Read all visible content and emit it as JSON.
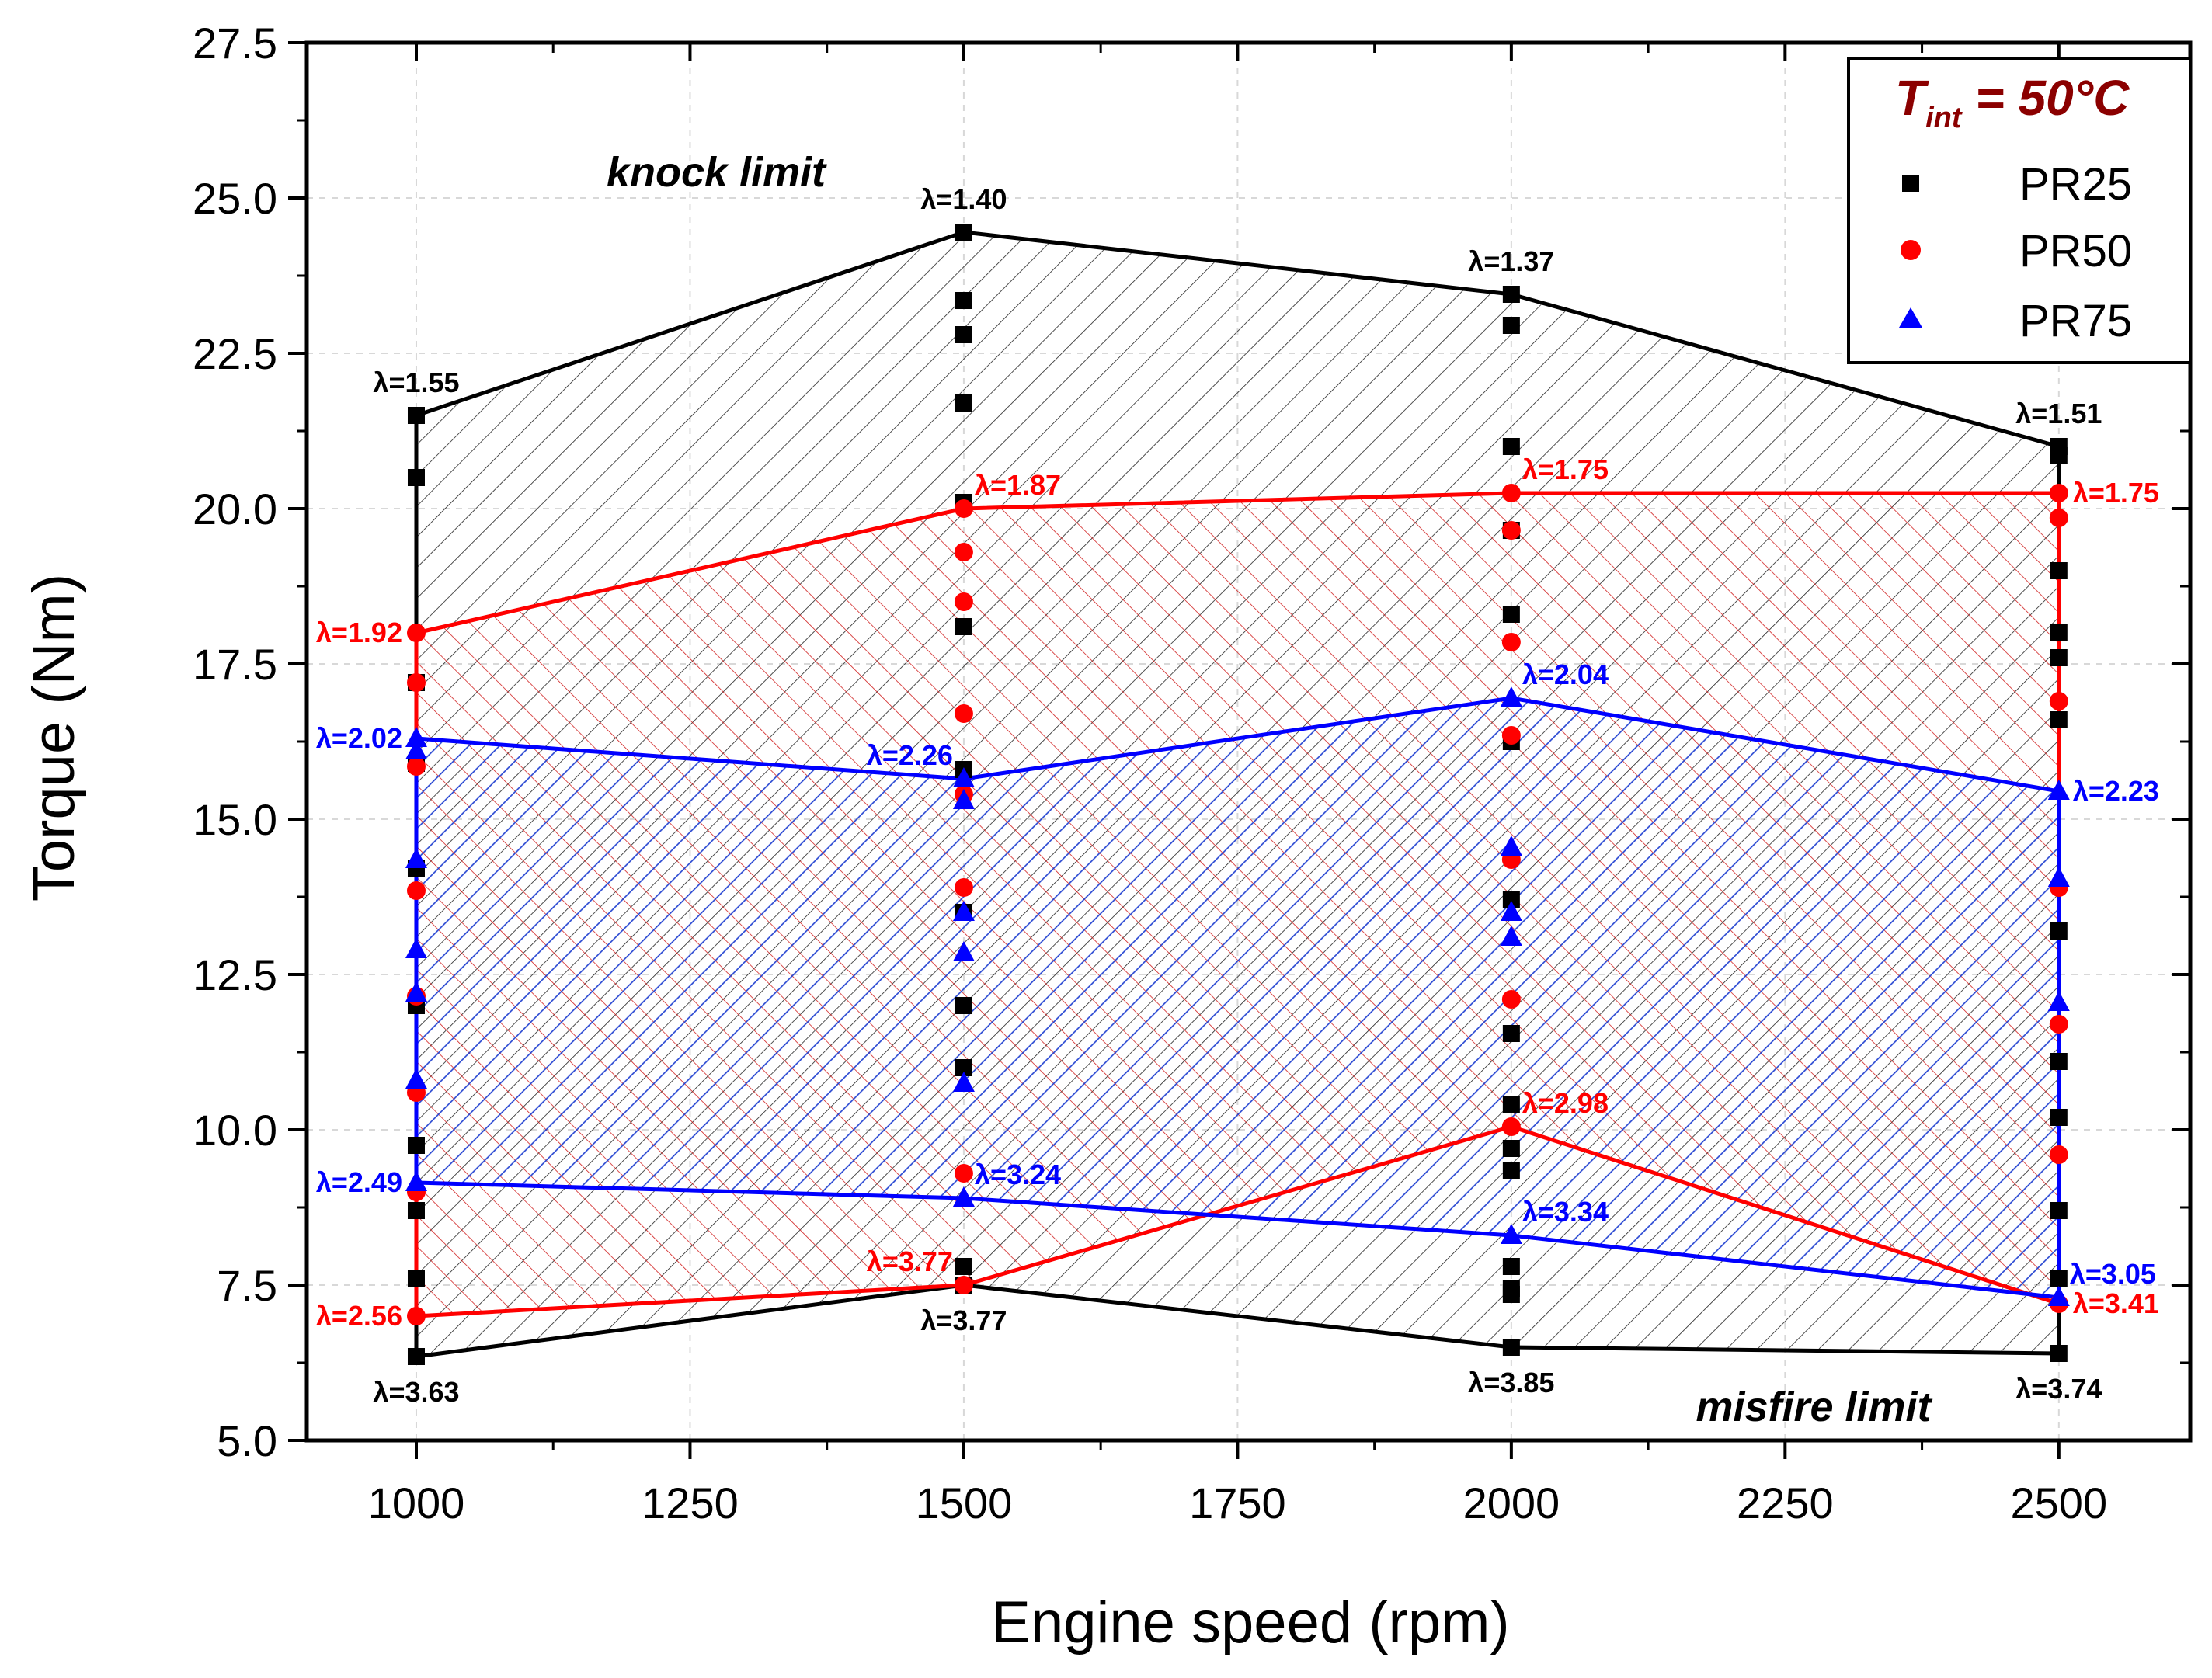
{
  "chart_data": {
    "type": "scatter",
    "xlabel": "Engine speed (rpm)",
    "ylabel": "Torque (Nm)",
    "xlim": [
      900,
      2620
    ],
    "ylim": [
      5.0,
      27.5
    ],
    "xticks": [
      1000,
      1250,
      1500,
      1750,
      2000,
      2250,
      2500
    ],
    "yticks": [
      5.0,
      7.5,
      10.0,
      12.5,
      15.0,
      17.5,
      20.0,
      22.5,
      25.0,
      27.5
    ],
    "xtick_labels": [
      "1000",
      "1250",
      "1500",
      "1750",
      "2000",
      "2250",
      "2500"
    ],
    "ytick_labels": [
      "5.0",
      "7.5",
      "10.0",
      "12.5",
      "15.0",
      "17.5",
      "20.0",
      "22.5",
      "25.0",
      "27.5"
    ],
    "legend": {
      "title_main": "T",
      "title_sub": "int",
      "title_rest": " = 50°C",
      "position": "top-right",
      "entries": [
        "PR25",
        "PR50",
        "PR75"
      ]
    },
    "colors": {
      "PR25": "#000000",
      "PR50": "#ff0000",
      "PR75": "#0000ff",
      "title": "#8b0000"
    },
    "annotations": {
      "knock": "knock limit",
      "misfire": "misfire limit"
    },
    "series": [
      {
        "name": "PR25",
        "marker": "square",
        "upper": [
          [
            1000,
            21.5
          ],
          [
            1500,
            24.45
          ],
          [
            2000,
            23.45
          ],
          [
            2500,
            21.0
          ]
        ],
        "lower": [
          [
            1000,
            6.35
          ],
          [
            1500,
            7.5
          ],
          [
            2000,
            6.5
          ],
          [
            2500,
            6.4
          ]
        ],
        "points": [
          [
            1000,
            21.5
          ],
          [
            1000,
            20.5
          ],
          [
            1000,
            17.2
          ],
          [
            1000,
            15.9
          ],
          [
            1000,
            14.2
          ],
          [
            1000,
            12.0
          ],
          [
            1000,
            9.75
          ],
          [
            1000,
            8.7
          ],
          [
            1000,
            7.6
          ],
          [
            1000,
            6.35
          ],
          [
            1500,
            24.45
          ],
          [
            1500,
            23.35
          ],
          [
            1500,
            22.8
          ],
          [
            1500,
            21.7
          ],
          [
            1500,
            20.1
          ],
          [
            1500,
            18.1
          ],
          [
            1500,
            15.8
          ],
          [
            1500,
            13.5
          ],
          [
            1500,
            12.0
          ],
          [
            1500,
            11.0
          ],
          [
            1500,
            7.8
          ],
          [
            1500,
            7.5
          ],
          [
            2000,
            23.45
          ],
          [
            2000,
            22.95
          ],
          [
            2000,
            21.0
          ],
          [
            2000,
            19.65
          ],
          [
            2000,
            18.3
          ],
          [
            2000,
            16.25
          ],
          [
            2000,
            13.7
          ],
          [
            2000,
            11.55
          ],
          [
            2000,
            10.4
          ],
          [
            2000,
            9.7
          ],
          [
            2000,
            9.35
          ],
          [
            2000,
            7.8
          ],
          [
            2000,
            7.45
          ],
          [
            2000,
            7.35
          ],
          [
            2000,
            6.5
          ],
          [
            2500,
            21.0
          ],
          [
            2500,
            20.85
          ],
          [
            2500,
            19.0
          ],
          [
            2500,
            18.0
          ],
          [
            2500,
            17.6
          ],
          [
            2500,
            16.6
          ],
          [
            2500,
            13.2
          ],
          [
            2500,
            11.1
          ],
          [
            2500,
            10.2
          ],
          [
            2500,
            8.7
          ],
          [
            2500,
            7.6
          ],
          [
            2500,
            6.4
          ]
        ],
        "labels": [
          {
            "x": 1000,
            "y": 21.5,
            "text": "λ=1.55",
            "pos": "above"
          },
          {
            "x": 1500,
            "y": 24.45,
            "text": "λ=1.40",
            "pos": "above"
          },
          {
            "x": 2000,
            "y": 23.45,
            "text": "λ=1.37",
            "pos": "above"
          },
          {
            "x": 2500,
            "y": 21.0,
            "text": "λ=1.51",
            "pos": "above"
          },
          {
            "x": 1000,
            "y": 6.35,
            "text": "λ=3.63",
            "pos": "below"
          },
          {
            "x": 1500,
            "y": 7.5,
            "text": "λ=3.77",
            "pos": "below"
          },
          {
            "x": 2000,
            "y": 6.5,
            "text": "λ=3.85",
            "pos": "below"
          },
          {
            "x": 2500,
            "y": 6.4,
            "text": "λ=3.74",
            "pos": "below"
          }
        ]
      },
      {
        "name": "PR50",
        "marker": "circle",
        "upper": [
          [
            1000,
            18.0
          ],
          [
            1500,
            20.0
          ],
          [
            2000,
            20.25
          ],
          [
            2500,
            20.25
          ]
        ],
        "lower": [
          [
            1000,
            7.0
          ],
          [
            1500,
            7.5
          ],
          [
            2000,
            10.05
          ],
          [
            2500,
            7.2
          ]
        ],
        "points": [
          [
            1000,
            18.0
          ],
          [
            1000,
            17.2
          ],
          [
            1000,
            15.85
          ],
          [
            1000,
            13.85
          ],
          [
            1000,
            12.15
          ],
          [
            1000,
            10.6
          ],
          [
            1000,
            9.0
          ],
          [
            1000,
            7.0
          ],
          [
            1500,
            20.0
          ],
          [
            1500,
            19.3
          ],
          [
            1500,
            18.5
          ],
          [
            1500,
            16.7
          ],
          [
            1500,
            15.4
          ],
          [
            1500,
            13.9
          ],
          [
            1500,
            9.3
          ],
          [
            1500,
            7.5
          ],
          [
            2000,
            20.25
          ],
          [
            2000,
            19.65
          ],
          [
            2000,
            17.85
          ],
          [
            2000,
            16.35
          ],
          [
            2000,
            14.35
          ],
          [
            2000,
            12.1
          ],
          [
            2000,
            10.05
          ],
          [
            2500,
            20.25
          ],
          [
            2500,
            19.85
          ],
          [
            2500,
            16.9
          ],
          [
            2500,
            13.9
          ],
          [
            2500,
            11.7
          ],
          [
            2500,
            9.6
          ],
          [
            2500,
            7.2
          ]
        ],
        "labels": [
          {
            "x": 1000,
            "y": 18.0,
            "text": "λ=1.92",
            "pos": "left"
          },
          {
            "x": 1500,
            "y": 20.0,
            "text": "λ=1.87",
            "pos": "upright"
          },
          {
            "x": 2000,
            "y": 20.25,
            "text": "λ=1.75",
            "pos": "upright"
          },
          {
            "x": 2500,
            "y": 20.25,
            "text": "λ=1.75",
            "pos": "right"
          },
          {
            "x": 1000,
            "y": 7.0,
            "text": "λ=2.56",
            "pos": "left"
          },
          {
            "x": 1500,
            "y": 7.5,
            "text": "λ=3.77",
            "pos": "upleft"
          },
          {
            "x": 2000,
            "y": 10.05,
            "text": "λ=2.98",
            "pos": "upright"
          },
          {
            "x": 2500,
            "y": 7.2,
            "text": "λ=3.41",
            "pos": "right"
          }
        ]
      },
      {
        "name": "PR75",
        "marker": "triangle",
        "upper": [
          [
            1000,
            16.3
          ],
          [
            1500,
            15.65
          ],
          [
            2000,
            16.95
          ],
          [
            2500,
            15.45
          ]
        ],
        "lower": [
          [
            1000,
            9.15
          ],
          [
            1500,
            8.9
          ],
          [
            2000,
            8.3
          ],
          [
            2500,
            7.3
          ]
        ],
        "points": [
          [
            1000,
            16.3
          ],
          [
            1000,
            16.1
          ],
          [
            1000,
            14.35
          ],
          [
            1000,
            12.9
          ],
          [
            1000,
            12.2
          ],
          [
            1000,
            10.8
          ],
          [
            1000,
            9.15
          ],
          [
            1500,
            15.65
          ],
          [
            1500,
            15.3
          ],
          [
            1500,
            13.5
          ],
          [
            1500,
            12.85
          ],
          [
            1500,
            10.75
          ],
          [
            1500,
            8.9
          ],
          [
            2000,
            16.95
          ],
          [
            2000,
            14.55
          ],
          [
            2000,
            13.5
          ],
          [
            2000,
            13.1
          ],
          [
            2000,
            8.3
          ],
          [
            2500,
            15.45
          ],
          [
            2500,
            14.05
          ],
          [
            2500,
            12.05
          ],
          [
            2500,
            7.3
          ]
        ],
        "labels": [
          {
            "x": 1000,
            "y": 16.3,
            "text": "λ=2.02",
            "pos": "left"
          },
          {
            "x": 1500,
            "y": 15.65,
            "text": "λ=2.26",
            "pos": "upleft"
          },
          {
            "x": 2000,
            "y": 16.95,
            "text": "λ=2.04",
            "pos": "upright"
          },
          {
            "x": 2500,
            "y": 15.45,
            "text": "λ=2.23",
            "pos": "right"
          },
          {
            "x": 1000,
            "y": 9.15,
            "text": "λ=2.49",
            "pos": "left"
          },
          {
            "x": 1500,
            "y": 8.9,
            "text": "λ=3.24",
            "pos": "upright"
          },
          {
            "x": 2000,
            "y": 8.3,
            "text": "λ=3.34",
            "pos": "upright"
          },
          {
            "x": 2500,
            "y": 7.3,
            "text": "λ=3.05",
            "pos": "upright"
          }
        ]
      }
    ]
  }
}
